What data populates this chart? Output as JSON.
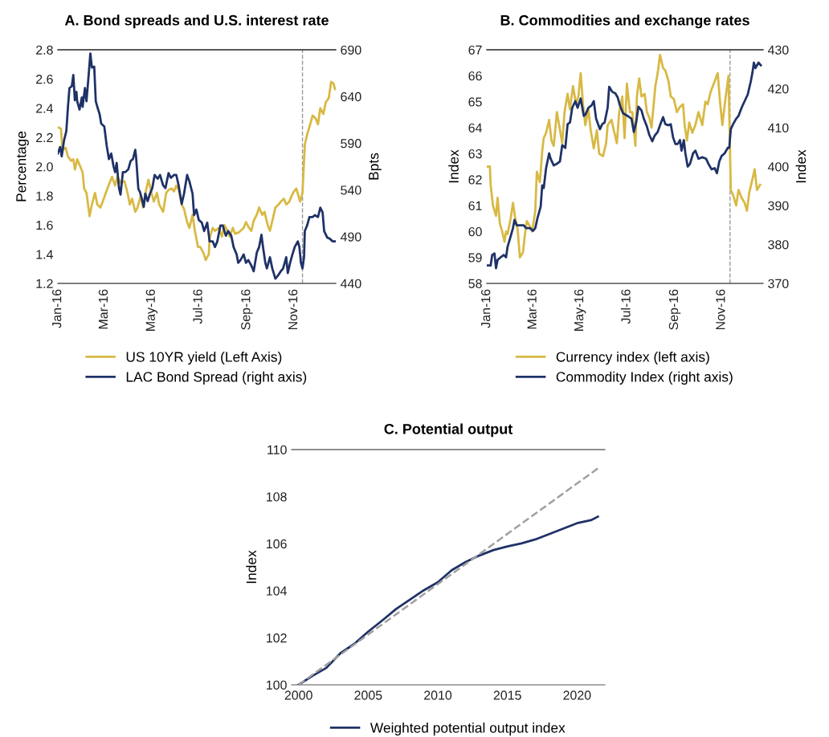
{
  "chart_data": [
    {
      "type": "line",
      "title": "A. Bond spreads and U.S. interest rate",
      "ylabel": "Percentage",
      "y2label": "Bpts",
      "legend": "bottom",
      "grid": false,
      "xlim": [
        "2016-01-01",
        "2016-12-25"
      ],
      "xticks": [
        {
          "value": "2016-01-01",
          "label": "Jan-16"
        },
        {
          "value": "2016-03-01",
          "label": "Mar-16"
        },
        {
          "value": "2016-05-01",
          "label": "May-16"
        },
        {
          "value": "2016-07-01",
          "label": "Jul-16"
        },
        {
          "value": "2016-09-01",
          "label": "Sep-16"
        },
        {
          "value": "2016-11-01",
          "label": "Nov-16"
        }
      ],
      "ylim": [
        1.2,
        2.8
      ],
      "yticks": [
        {
          "value": 1.2,
          "label": "1.2"
        },
        {
          "value": 1.4,
          "label": "1.4"
        },
        {
          "value": 1.6,
          "label": "1.6"
        },
        {
          "value": 1.8,
          "label": "1.8"
        },
        {
          "value": 2.0,
          "label": "2.0"
        },
        {
          "value": 2.2,
          "label": "2.2"
        },
        {
          "value": 2.4,
          "label": "2.4"
        },
        {
          "value": 2.6,
          "label": "2.6"
        },
        {
          "value": 2.8,
          "label": "2.8"
        }
      ],
      "y2lim": [
        440,
        690
      ],
      "y2ticks": [
        440,
        490,
        540,
        590,
        640,
        690
      ],
      "ref_lines": [
        {
          "axis": "x",
          "value": "2016-11-12",
          "color": "#999999",
          "line_style": "dashed"
        }
      ],
      "series": [
        {
          "name": "US 10YR yield (Left Axis)",
          "color": "#d8b944",
          "x": [
            "2016-01-01",
            "2016-01-05",
            "2016-01-07",
            "2016-01-11",
            "2016-01-14",
            "2016-01-18",
            "2016-01-21",
            "2016-01-23",
            "2016-01-26",
            "2016-01-30",
            "2016-02-02",
            "2016-02-04",
            "2016-02-07",
            "2016-02-11",
            "2016-02-14",
            "2016-02-18",
            "2016-02-21",
            "2016-02-25",
            "2016-02-28",
            "2016-03-03",
            "2016-03-08",
            "2016-03-11",
            "2016-03-15",
            "2016-03-18",
            "2016-03-22",
            "2016-03-27",
            "2016-03-31",
            "2016-04-03",
            "2016-04-06",
            "2016-04-10",
            "2016-04-13",
            "2016-04-17",
            "2016-04-20",
            "2016-04-24",
            "2016-04-27",
            "2016-05-01",
            "2016-05-04",
            "2016-05-08",
            "2016-05-11",
            "2016-05-16",
            "2016-05-20",
            "2016-05-23",
            "2016-05-27",
            "2016-05-30",
            "2016-06-02",
            "2016-06-05",
            "2016-06-09",
            "2016-06-12",
            "2016-06-16",
            "2016-06-19",
            "2016-06-23",
            "2016-06-26",
            "2016-06-30",
            "2016-07-03",
            "2016-07-07",
            "2016-07-10",
            "2016-07-14",
            "2016-07-15",
            "2016-07-19",
            "2016-07-22",
            "2016-07-27",
            "2016-07-31",
            "2016-08-03",
            "2016-08-07",
            "2016-08-10",
            "2016-08-14",
            "2016-08-17",
            "2016-08-22",
            "2016-08-28",
            "2016-08-31",
            "2016-09-04",
            "2016-09-07",
            "2016-09-10",
            "2016-09-14",
            "2016-09-17",
            "2016-09-21",
            "2016-09-24",
            "2016-09-28",
            "2016-10-01",
            "2016-10-05",
            "2016-10-08",
            "2016-10-12",
            "2016-10-15",
            "2016-10-19",
            "2016-10-22",
            "2016-10-26",
            "2016-10-29",
            "2016-11-01",
            "2016-11-04",
            "2016-11-09",
            "2016-11-12",
            "2016-11-15",
            "2016-11-18",
            "2016-11-22",
            "2016-11-25",
            "2016-11-29",
            "2016-12-02",
            "2016-12-05",
            "2016-12-09",
            "2016-12-12",
            "2016-12-16",
            "2016-12-19",
            "2016-12-22",
            "2016-12-24"
          ],
          "values": [
            2.27,
            2.26,
            2.11,
            2.13,
            2.07,
            2.04,
            2.05,
            1.98,
            2.05,
            2.0,
            1.96,
            1.85,
            1.82,
            1.66,
            1.74,
            1.82,
            1.74,
            1.72,
            1.76,
            1.82,
            1.89,
            1.93,
            1.87,
            1.93,
            1.89,
            1.9,
            1.82,
            1.74,
            1.78,
            1.69,
            1.72,
            1.8,
            1.72,
            1.84,
            1.91,
            1.82,
            1.76,
            1.82,
            1.74,
            1.69,
            1.82,
            1.84,
            1.85,
            1.83,
            1.87,
            1.84,
            1.74,
            1.71,
            1.62,
            1.58,
            1.67,
            1.56,
            1.45,
            1.45,
            1.41,
            1.36,
            1.4,
            1.51,
            1.58,
            1.56,
            1.58,
            1.52,
            1.6,
            1.56,
            1.52,
            1.58,
            1.54,
            1.55,
            1.58,
            1.62,
            1.58,
            1.56,
            1.63,
            1.67,
            1.72,
            1.67,
            1.69,
            1.6,
            1.56,
            1.65,
            1.72,
            1.74,
            1.76,
            1.78,
            1.74,
            1.76,
            1.8,
            1.83,
            1.85,
            1.76,
            1.82,
            2.15,
            2.22,
            2.29,
            2.35,
            2.33,
            2.29,
            2.4,
            2.36,
            2.44,
            2.47,
            2.58,
            2.57,
            2.53
          ]
        },
        {
          "name": "LAC Bond Spread (right axis)",
          "color": "#1f3267",
          "axis": "y2",
          "x": [
            "2016-01-01",
            "2016-01-04",
            "2016-01-06",
            "2016-01-09",
            "2016-01-12",
            "2016-01-14",
            "2016-01-16",
            "2016-01-19",
            "2016-01-21",
            "2016-01-23",
            "2016-01-25",
            "2016-01-26",
            "2016-01-29",
            "2016-02-01",
            "2016-02-02",
            "2016-02-05",
            "2016-02-07",
            "2016-02-10",
            "2016-02-12",
            "2016-02-14",
            "2016-02-17",
            "2016-02-19",
            "2016-02-21",
            "2016-02-24",
            "2016-02-26",
            "2016-03-01",
            "2016-03-04",
            "2016-03-07",
            "2016-03-10",
            "2016-03-13",
            "2016-03-15",
            "2016-03-17",
            "2016-03-20",
            "2016-03-22",
            "2016-03-25",
            "2016-03-28",
            "2016-04-01",
            "2016-04-04",
            "2016-04-07",
            "2016-04-10",
            "2016-04-11",
            "2016-04-14",
            "2016-04-16",
            "2016-04-18",
            "2016-04-21",
            "2016-04-23",
            "2016-04-26",
            "2016-04-29",
            "2016-05-02",
            "2016-05-05",
            "2016-05-09",
            "2016-05-12",
            "2016-05-16",
            "2016-05-19",
            "2016-05-23",
            "2016-05-26",
            "2016-05-30",
            "2016-06-02",
            "2016-06-05",
            "2016-06-09",
            "2016-06-12",
            "2016-06-16",
            "2016-06-19",
            "2016-06-23",
            "2016-06-25",
            "2016-06-28",
            "2016-07-01",
            "2016-07-05",
            "2016-07-08",
            "2016-07-12",
            "2016-07-15",
            "2016-07-19",
            "2016-07-22",
            "2016-07-25",
            "2016-07-29",
            "2016-08-01",
            "2016-08-05",
            "2016-08-08",
            "2016-08-12",
            "2016-08-15",
            "2016-08-19",
            "2016-08-21",
            "2016-08-24",
            "2016-08-28",
            "2016-08-31",
            "2016-09-03",
            "2016-09-07",
            "2016-09-10",
            "2016-09-14",
            "2016-09-17",
            "2016-09-20",
            "2016-09-22",
            "2016-09-25",
            "2016-09-27",
            "2016-10-01",
            "2016-10-04",
            "2016-10-08",
            "2016-10-11",
            "2016-10-15",
            "2016-10-18",
            "2016-10-22",
            "2016-10-24",
            "2016-10-27",
            "2016-10-30",
            "2016-11-02",
            "2016-11-06",
            "2016-11-08",
            "2016-11-10",
            "2016-11-12",
            "2016-11-14",
            "2016-11-15",
            "2016-11-18",
            "2016-11-21",
            "2016-11-25",
            "2016-11-28",
            "2016-12-02",
            "2016-12-05",
            "2016-12-08",
            "2016-12-10",
            "2016-12-14",
            "2016-12-17",
            "2016-12-21",
            "2016-12-24"
          ],
          "values": [
            579,
            586,
            576,
            593,
            603,
            628,
            649,
            651,
            663,
            636,
            645,
            635,
            626,
            639,
            629,
            649,
            635,
            665,
            686,
            671,
            672,
            635,
            629,
            621,
            611,
            608,
            588,
            573,
            579,
            565,
            559,
            569,
            542,
            535,
            559,
            559,
            562,
            571,
            573,
            583,
            576,
            541,
            538,
            532,
            522,
            536,
            528,
            536,
            542,
            556,
            552,
            556,
            545,
            542,
            558,
            553,
            556,
            556,
            545,
            525,
            536,
            556,
            549,
            536,
            513,
            519,
            508,
            505,
            496,
            505,
            485,
            485,
            479,
            485,
            502,
            502,
            491,
            496,
            491,
            479,
            471,
            462,
            465,
            471,
            462,
            465,
            459,
            453,
            473,
            479,
            492,
            479,
            462,
            456,
            468,
            456,
            445,
            448,
            453,
            456,
            468,
            451,
            462,
            471,
            479,
            485,
            479,
            462,
            456,
            468,
            496,
            502,
            511,
            511,
            513,
            511,
            521,
            516,
            496,
            489,
            488,
            485,
            485
          ]
        }
      ]
    },
    {
      "type": "line",
      "title": "B. Commodities and exchange rates",
      "ylabel": "Index",
      "y2label": "Index",
      "legend": "bottom",
      "grid": false,
      "xlim": [
        "2016-01-01",
        "2016-12-25"
      ],
      "xticks": [
        {
          "value": "2016-01-01",
          "label": "Jan-16"
        },
        {
          "value": "2016-03-01",
          "label": "Mar-16"
        },
        {
          "value": "2016-05-01",
          "label": "May-16"
        },
        {
          "value": "2016-07-01",
          "label": "Jul-16"
        },
        {
          "value": "2016-09-01",
          "label": "Sep-16"
        },
        {
          "value": "2016-11-01",
          "label": "Nov-16"
        }
      ],
      "ylim": [
        58,
        67
      ],
      "yticks": [
        58,
        59,
        60,
        61,
        62,
        63,
        64,
        65,
        66,
        67
      ],
      "y2lim": [
        370,
        430
      ],
      "y2ticks": [
        370,
        380,
        390,
        400,
        410,
        420,
        430
      ],
      "ref_lines": [
        {
          "axis": "x",
          "value": "2016-11-12",
          "color": "#999999",
          "line_style": "dashed"
        }
      ],
      "series": [
        {
          "name": "Currency index (left axis)",
          "color": "#d8b944",
          "x": [
            "2016-01-02",
            "2016-01-05",
            "2016-01-06",
            "2016-01-09",
            "2016-01-13",
            "2016-01-15",
            "2016-01-18",
            "2016-01-21",
            "2016-01-24",
            "2016-01-26",
            "2016-01-28",
            "2016-02-01",
            "2016-02-04",
            "2016-02-07",
            "2016-02-10",
            "2016-02-13",
            "2016-02-17",
            "2016-02-20",
            "2016-02-22",
            "2016-02-26",
            "2016-02-29",
            "2016-03-04",
            "2016-03-06",
            "2016-03-10",
            "2016-03-13",
            "2016-03-15",
            "2016-03-18",
            "2016-03-22",
            "2016-03-25",
            "2016-03-28",
            "2016-04-01",
            "2016-04-04",
            "2016-04-08",
            "2016-04-11",
            "2016-04-15",
            "2016-04-18",
            "2016-04-22",
            "2016-04-26",
            "2016-04-29",
            "2016-05-02",
            "2016-05-05",
            "2016-05-08",
            "2016-05-12",
            "2016-05-15",
            "2016-05-19",
            "2016-05-23",
            "2016-05-26",
            "2016-05-31",
            "2016-06-04",
            "2016-06-06",
            "2016-06-11",
            "2016-06-14",
            "2016-06-18",
            "2016-06-21",
            "2016-06-25",
            "2016-06-28",
            "2016-07-01",
            "2016-07-05",
            "2016-07-08",
            "2016-07-12",
            "2016-07-14",
            "2016-07-17",
            "2016-07-20",
            "2016-07-24",
            "2016-07-27",
            "2016-07-30",
            "2016-08-02",
            "2016-08-07",
            "2016-08-10",
            "2016-08-13",
            "2016-08-17",
            "2016-08-20",
            "2016-08-24",
            "2016-08-27",
            "2016-08-31",
            "2016-09-04",
            "2016-09-08",
            "2016-09-12",
            "2016-09-14",
            "2016-09-17",
            "2016-09-20",
            "2016-09-24",
            "2016-09-28",
            "2016-10-02",
            "2016-10-07",
            "2016-10-11",
            "2016-10-14",
            "2016-10-18",
            "2016-10-22",
            "2016-10-27",
            "2016-10-30",
            "2016-11-02",
            "2016-11-06",
            "2016-11-10",
            "2016-11-13",
            "2016-11-16",
            "2016-11-20",
            "2016-11-23",
            "2016-11-27",
            "2016-12-01",
            "2016-12-04",
            "2016-12-07",
            "2016-12-11",
            "2016-12-14",
            "2016-12-17",
            "2016-12-21"
          ],
          "values": [
            62.5,
            62.5,
            61.8,
            61.0,
            60.6,
            61.3,
            60.3,
            60.0,
            59.6,
            60.0,
            59.9,
            60.5,
            61.1,
            60.5,
            60.1,
            59.0,
            59.2,
            60.0,
            60.4,
            60.2,
            60.0,
            60.8,
            62.3,
            61.9,
            63.1,
            63.6,
            63.8,
            64.3,
            63.5,
            63.3,
            64.6,
            64.1,
            63.4,
            64.6,
            65.3,
            64.7,
            65.6,
            64.9,
            65.2,
            66.1,
            64.9,
            64.1,
            64.7,
            63.9,
            63.2,
            63.9,
            63.0,
            62.9,
            63.4,
            64.1,
            64.3,
            63.9,
            63.4,
            64.6,
            65.2,
            63.6,
            65.7,
            64.6,
            64.6,
            63.3,
            65.2,
            65.9,
            65.2,
            65.3,
            64.6,
            64.4,
            64.0,
            65.6,
            66.1,
            66.8,
            66.3,
            66.2,
            65.8,
            65.2,
            65.1,
            64.6,
            64.8,
            64.9,
            64.1,
            63.5,
            64.2,
            63.8,
            64.1,
            64.6,
            64.1,
            65.0,
            64.9,
            65.4,
            65.7,
            66.1,
            65.0,
            64.1,
            65.1,
            66.0,
            61.6,
            61.4,
            61.0,
            61.6,
            61.3,
            61.1,
            60.8,
            61.5,
            62.0,
            62.4,
            61.6,
            61.8
          ]
        },
        {
          "name": "Commodity Index (right axis)",
          "color": "#1f3267",
          "axis": "y2",
          "x": [
            "2016-01-02",
            "2016-01-06",
            "2016-01-08",
            "2016-01-11",
            "2016-01-13",
            "2016-01-15",
            "2016-01-19",
            "2016-01-23",
            "2016-01-26",
            "2016-01-28",
            "2016-02-01",
            "2016-02-04",
            "2016-02-06",
            "2016-02-09",
            "2016-02-14",
            "2016-02-18",
            "2016-02-21",
            "2016-02-26",
            "2016-03-01",
            "2016-03-04",
            "2016-03-07",
            "2016-03-11",
            "2016-03-13",
            "2016-03-15",
            "2016-03-18",
            "2016-03-22",
            "2016-03-24",
            "2016-03-28",
            "2016-04-01",
            "2016-04-05",
            "2016-04-08",
            "2016-04-12",
            "2016-04-15",
            "2016-04-18",
            "2016-04-21",
            "2016-04-25",
            "2016-04-28",
            "2016-05-02",
            "2016-05-06",
            "2016-05-08",
            "2016-05-12",
            "2016-05-16",
            "2016-05-19",
            "2016-05-22",
            "2016-05-27",
            "2016-05-30",
            "2016-06-02",
            "2016-06-06",
            "2016-06-08",
            "2016-06-12",
            "2016-06-16",
            "2016-06-19",
            "2016-06-22",
            "2016-06-26",
            "2016-07-02",
            "2016-07-07",
            "2016-07-10",
            "2016-07-13",
            "2016-07-16",
            "2016-07-20",
            "2016-07-23",
            "2016-07-27",
            "2016-07-30",
            "2016-08-03",
            "2016-08-06",
            "2016-08-10",
            "2016-08-13",
            "2016-08-17",
            "2016-08-20",
            "2016-08-24",
            "2016-08-27",
            "2016-08-30",
            "2016-09-02",
            "2016-09-05",
            "2016-09-08",
            "2016-09-10",
            "2016-09-13",
            "2016-09-15",
            "2016-09-18",
            "2016-09-21",
            "2016-09-25",
            "2016-09-28",
            "2016-10-02",
            "2016-10-07",
            "2016-10-12",
            "2016-10-15",
            "2016-10-19",
            "2016-10-23",
            "2016-10-26",
            "2016-10-29",
            "2016-11-01",
            "2016-11-05",
            "2016-11-09",
            "2016-11-11",
            "2016-11-13",
            "2016-11-16",
            "2016-11-20",
            "2016-11-23",
            "2016-11-27",
            "2016-11-30",
            "2016-12-05",
            "2016-12-09",
            "2016-12-11",
            "2016-12-13",
            "2016-12-15",
            "2016-12-19",
            "2016-12-22"
          ],
          "values": [
            374.6,
            374.6,
            377.3,
            377.7,
            373.9,
            376.0,
            376.7,
            377.3,
            376.7,
            379.4,
            382.1,
            384.2,
            386.3,
            384.9,
            384.9,
            384.9,
            384.2,
            384.2,
            383.5,
            384.2,
            386.9,
            389.7,
            395.2,
            394.5,
            399.6,
            403.4,
            402.0,
            400.3,
            400.7,
            401.3,
            405.5,
            404.8,
            410.9,
            411.3,
            415.1,
            416.8,
            415.1,
            417.5,
            413.0,
            413.3,
            415.1,
            415.7,
            416.8,
            412.3,
            409.6,
            410.9,
            411.3,
            415.1,
            420.5,
            419.2,
            418.8,
            417.8,
            415.7,
            413.7,
            413.0,
            412.3,
            408.9,
            411.3,
            415.4,
            414.4,
            412.3,
            410.3,
            408.2,
            406.5,
            407.9,
            408.9,
            410.6,
            412.7,
            410.9,
            410.6,
            410.9,
            407.5,
            405.8,
            405.8,
            406.8,
            404.1,
            406.8,
            403.4,
            400.0,
            400.7,
            403.4,
            404.1,
            402.0,
            402.4,
            402.0,
            400.7,
            399.3,
            399.6,
            398.3,
            401.3,
            402.7,
            403.4,
            404.8,
            404.8,
            409.6,
            410.9,
            412.3,
            413.0,
            415.1,
            416.4,
            418.5,
            421.9,
            424.0,
            426.7,
            425.3,
            426.7,
            426.0
          ]
        }
      ]
    },
    {
      "type": "line",
      "title": "C. Potential output",
      "ylabel": "Index",
      "legend": "bottom",
      "grid": false,
      "xlim": [
        1999.5,
        2022
      ],
      "xticks": [
        2000,
        2005,
        2010,
        2015,
        2020
      ],
      "ylim": [
        100,
        110
      ],
      "yticks": [
        100,
        102,
        104,
        106,
        108,
        110
      ],
      "series": [
        {
          "name": "Weighted potential output index",
          "color": "#1f3267",
          "x": [
            2000,
            2001,
            2002,
            2003,
            2004,
            2005,
            2006,
            2007,
            2008,
            2009,
            2010,
            2011,
            2012,
            2013,
            2014,
            2015,
            2016,
            2017,
            2018,
            2019,
            2020,
            2021,
            2021.5
          ],
          "values": [
            100.0,
            100.38,
            100.72,
            101.34,
            101.74,
            102.26,
            102.73,
            103.22,
            103.62,
            104.02,
            104.36,
            104.87,
            105.22,
            105.5,
            105.73,
            105.88,
            106.01,
            106.18,
            106.41,
            106.64,
            106.87,
            107.0,
            107.15
          ]
        },
        {
          "color": "#a0a0a0",
          "line_style": "dashed",
          "x": [
            2000,
            2021.5
          ],
          "values": [
            100.0,
            109.2
          ]
        }
      ]
    }
  ]
}
